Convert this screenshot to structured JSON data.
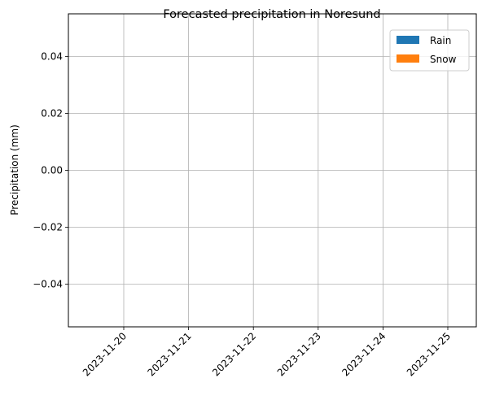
{
  "chart_data": {
    "type": "bar",
    "title": "Forecasted precipitation in Noresund",
    "xlabel": "",
    "ylabel": "Precipitation (mm)",
    "x_ticks": [
      "2023-11-20",
      "2023-11-21",
      "2023-11-22",
      "2023-11-23",
      "2023-11-24",
      "2023-11-25"
    ],
    "y_ticks": [
      "0.04",
      "0.02",
      "0.00",
      "−0.02",
      "−0.04"
    ],
    "y_tick_values": [
      0.04,
      0.02,
      0.0,
      -0.02,
      -0.04
    ],
    "ylim": [
      -0.055,
      0.055
    ],
    "xlim": [
      "2023-11-19",
      "2023-11-25"
    ],
    "grid": true,
    "legend_position": "top-right",
    "series": [
      {
        "name": "Rain",
        "color": "#1f77b4",
        "values": []
      },
      {
        "name": "Snow",
        "color": "#ff7f0e",
        "values": []
      }
    ]
  }
}
